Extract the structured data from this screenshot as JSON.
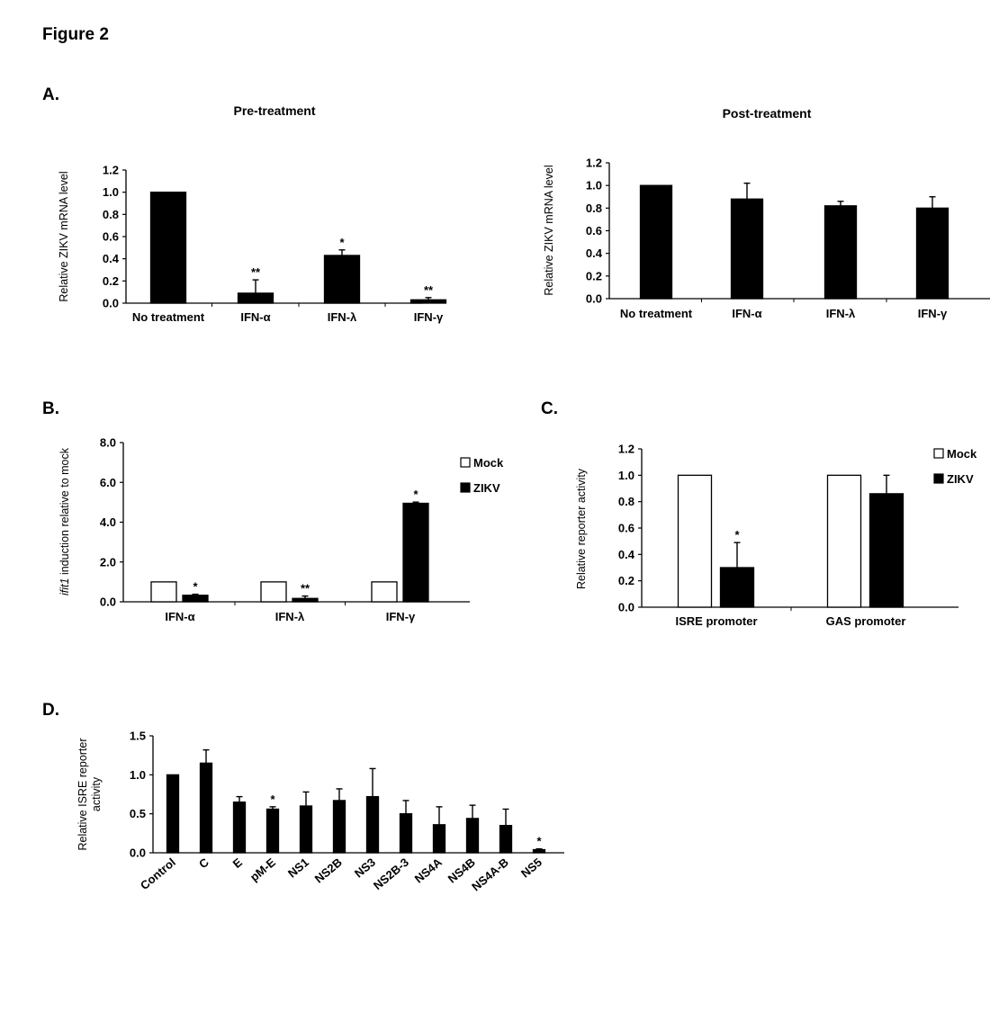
{
  "figure_title": "Figure 2",
  "panel_labels": {
    "A": "A.",
    "B": "B.",
    "C": "C.",
    "D": "D."
  },
  "chart_data": [
    {
      "id": "A1",
      "type": "bar",
      "title": "Pre-treatment",
      "ylabel": "Relative ZIKV mRNA level",
      "ylim": [
        0,
        1.2
      ],
      "yticks": [
        "0.0",
        "0.2",
        "0.4",
        "0.6",
        "0.8",
        "1.0",
        "1.2"
      ],
      "categories": [
        "No treatment",
        "IFN-α",
        "IFN-λ",
        "IFN-γ"
      ],
      "series": [
        {
          "color": "#000000",
          "values": [
            1.0,
            0.09,
            0.43,
            0.03
          ],
          "errors": [
            0,
            0.12,
            0.05,
            0.02
          ],
          "annotations": [
            "",
            "**",
            "*",
            "**"
          ]
        }
      ]
    },
    {
      "id": "A2",
      "type": "bar",
      "title": "Post-treatment",
      "ylabel": "Relative ZIKV mRNA level",
      "ylim": [
        0,
        1.2
      ],
      "yticks": [
        "0.0",
        "0.2",
        "0.4",
        "0.6",
        "0.8",
        "1.0",
        "1.2"
      ],
      "categories": [
        "No treatment",
        "IFN-α",
        "IFN-λ",
        "IFN-γ"
      ],
      "series": [
        {
          "color": "#000000",
          "values": [
            1.0,
            0.88,
            0.82,
            0.8
          ],
          "errors": [
            0,
            0.14,
            0.04,
            0.1
          ],
          "annotations": [
            "",
            "",
            "",
            ""
          ]
        }
      ]
    },
    {
      "id": "B",
      "type": "bar",
      "title": "",
      "ylabel_italic": "ifit1",
      "ylabel": " induction relative to mock",
      "ylim": [
        0,
        8
      ],
      "yticks": [
        "0.0",
        "2.0",
        "4.0",
        "6.0",
        "8.0"
      ],
      "categories": [
        "IFN-α",
        "IFN-λ",
        "IFN-γ"
      ],
      "series": [
        {
          "name": "Mock",
          "color": "#ffffff",
          "values": [
            1.0,
            1.0,
            1.0
          ],
          "errors": [
            0,
            0,
            0
          ],
          "annotations": [
            "",
            "",
            ""
          ]
        },
        {
          "name": "ZIKV",
          "color": "#000000",
          "values": [
            0.33,
            0.17,
            4.95
          ],
          "errors": [
            0.05,
            0.12,
            0.06
          ],
          "annotations": [
            "*",
            "**",
            "*"
          ]
        }
      ],
      "legend": "right"
    },
    {
      "id": "C",
      "type": "bar",
      "title": "",
      "ylabel": "Relative reporter activity",
      "ylim": [
        0,
        1.2
      ],
      "yticks": [
        "0.0",
        "0.2",
        "0.4",
        "0.6",
        "0.8",
        "1.0",
        "1.2"
      ],
      "categories": [
        "ISRE promoter",
        "GAS promoter"
      ],
      "series": [
        {
          "name": "Mock",
          "color": "#ffffff",
          "values": [
            1.0,
            1.0
          ],
          "errors": [
            0,
            0
          ],
          "annotations": [
            "",
            ""
          ]
        },
        {
          "name": "ZIKV",
          "color": "#000000",
          "values": [
            0.3,
            0.86
          ],
          "errors": [
            0.19,
            0.14
          ],
          "annotations": [
            "*",
            ""
          ]
        }
      ],
      "legend": "top-right"
    },
    {
      "id": "D",
      "type": "bar",
      "title": "",
      "ylabel_lines": [
        "Relative ISRE reporter",
        "activity"
      ],
      "ylim": [
        0,
        1.5
      ],
      "yticks": [
        "0.0",
        "0.5",
        "1.0",
        "1.5"
      ],
      "categories": [
        "Control",
        "C",
        "E",
        "pM-E",
        "NS1",
        "NS2B",
        "NS3",
        "NS2B-3",
        "NS4A",
        "NS4B",
        "NS4A-B",
        "NS5"
      ],
      "series": [
        {
          "color": "#000000",
          "values": [
            1.0,
            1.15,
            0.65,
            0.56,
            0.6,
            0.67,
            0.72,
            0.5,
            0.36,
            0.44,
            0.35,
            0.04
          ],
          "errors": [
            0,
            0.17,
            0.07,
            0.03,
            0.18,
            0.15,
            0.36,
            0.17,
            0.23,
            0.17,
            0.21,
            0.01
          ],
          "annotations": [
            "",
            "",
            "",
            "*",
            "",
            "",
            "",
            "",
            "",
            "",
            "",
            "*"
          ]
        }
      ]
    }
  ]
}
